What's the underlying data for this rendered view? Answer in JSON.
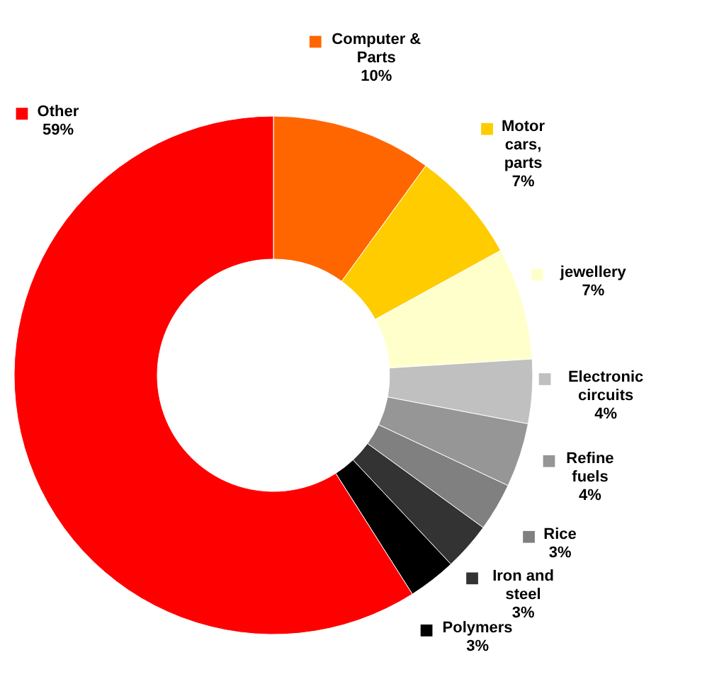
{
  "chart_data": {
    "type": "donut",
    "categories": [
      "Computer & Parts",
      "Motor cars, parts",
      "jewellery",
      "Electronic circuits",
      "Refine fuels",
      "Rice",
      "Iron and steel",
      "Polymers",
      "Other"
    ],
    "values": [
      10,
      7,
      7,
      4,
      4,
      3,
      3,
      3,
      59
    ],
    "colors": [
      "#ff6600",
      "#ffcc00",
      "#ffffcc",
      "#c0c0c0",
      "#969696",
      "#808080",
      "#333333",
      "#000000",
      "#ff0000"
    ],
    "value_labels": [
      "10%",
      "7%",
      "7%",
      "4%",
      "4%",
      "3%",
      "3%",
      "3%",
      "59%"
    ],
    "legend": "right"
  }
}
